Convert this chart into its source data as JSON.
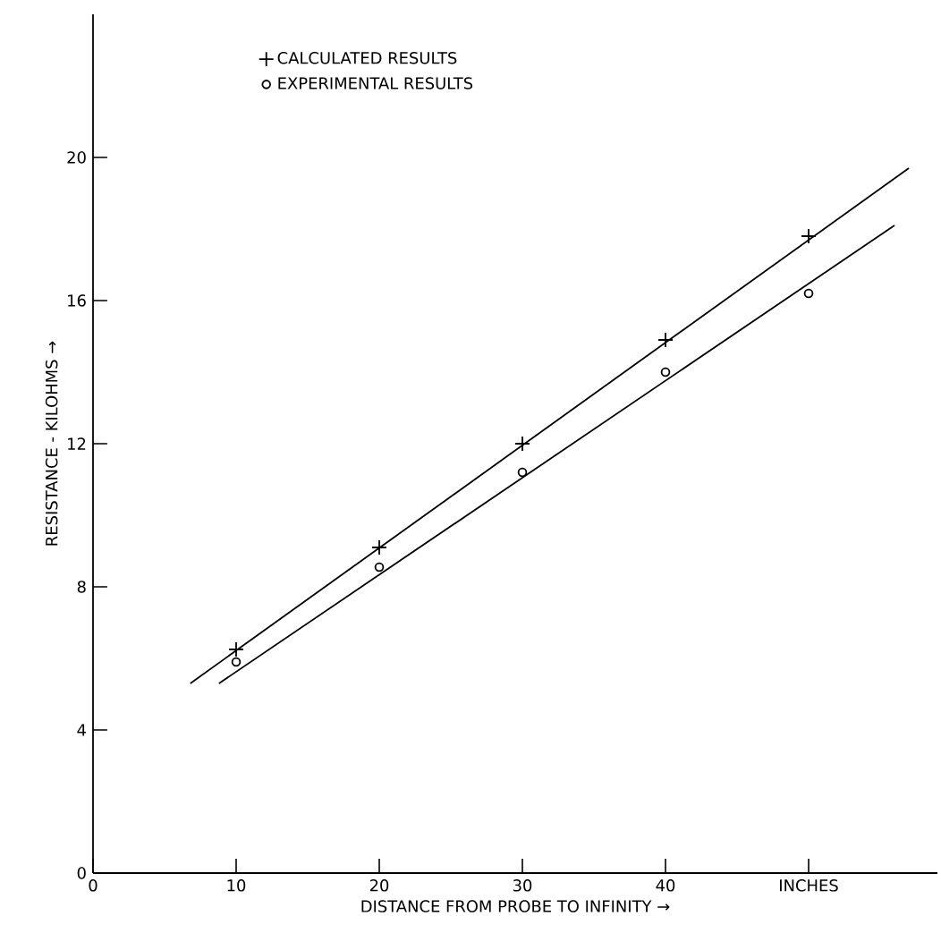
{
  "chart_data": {
    "type": "scatter",
    "xlabel": "DISTANCE FROM PROBE TO INFINITY →",
    "ylabel": "RESISTANCE - KILOHMS →",
    "x": [
      10,
      20,
      30,
      40,
      50
    ],
    "series": [
      {
        "name": "CALCULATED RESULTS",
        "color": "#000000",
        "marker": "cross",
        "values": [
          6.25,
          9.1,
          12.0,
          14.9,
          17.8
        ]
      },
      {
        "name": "EXPERIMENTAL RESULTS",
        "color": "#000000",
        "marker": "circle",
        "values": [
          5.9,
          8.55,
          11.2,
          14.0,
          16.2
        ]
      },
      {
        "type": "line",
        "color": "#000000",
        "marker": "none",
        "x": [
          6.8,
          57
        ],
        "values": [
          5.3,
          19.7
        ]
      },
      {
        "type": "line",
        "color": "#000000",
        "marker": "none",
        "x": [
          8.8,
          56
        ],
        "values": [
          5.3,
          18.1
        ]
      }
    ],
    "xlim": [
      0,
      59
    ],
    "ylim": [
      0,
      24
    ],
    "xticks": [
      0,
      10,
      20,
      30,
      40,
      {
        "value": 50,
        "label": "INCHES"
      }
    ],
    "yticks": [
      0,
      4,
      8,
      12,
      16,
      20
    ],
    "legend": "top left",
    "grid": false
  }
}
